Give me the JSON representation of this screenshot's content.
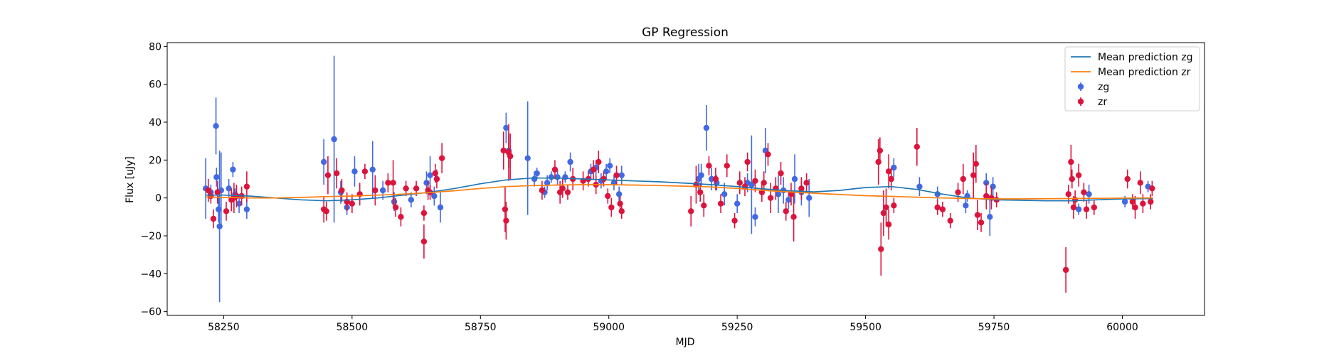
{
  "chart_data": {
    "type": "scatter",
    "title": "GP Regression",
    "xlabel": "MJD",
    "ylabel": "Flux [uJy]",
    "xlim": [
      58140,
      60160
    ],
    "ylim": [
      -62,
      82
    ],
    "xticks": [
      58250,
      58500,
      58750,
      59000,
      59250,
      59500,
      59750,
      60000
    ],
    "yticks": [
      -60,
      -40,
      -20,
      0,
      20,
      40,
      60,
      80
    ],
    "grid": false,
    "legend_position": "top-right",
    "series": [
      {
        "name": "Mean prediction zg",
        "kind": "line",
        "color": "#1f77b4",
        "x": [
          58215,
          58250,
          58300,
          58350,
          58400,
          58450,
          58500,
          58550,
          58600,
          58650,
          58700,
          58750,
          58800,
          58850,
          58900,
          58950,
          59000,
          59050,
          59100,
          59150,
          59200,
          59250,
          59300,
          59350,
          59400,
          59450,
          59500,
          59550,
          59600,
          59650,
          59700,
          59750,
          59800,
          59850,
          59900,
          59950,
          60000,
          60060
        ],
        "y": [
          1.5,
          1.5,
          1.0,
          0.0,
          -1.0,
          -1.5,
          -1.0,
          0.0,
          1.5,
          3.0,
          5.0,
          7.5,
          9.5,
          10.5,
          10.5,
          10.0,
          9.5,
          9.0,
          8.5,
          7.8,
          7.0,
          6.0,
          4.8,
          3.8,
          3.2,
          4.0,
          5.5,
          6.0,
          4.5,
          2.0,
          0.0,
          -1.0,
          -1.2,
          -1.5,
          -1.5,
          -1.0,
          -0.5,
          -0.3
        ]
      },
      {
        "name": "Mean prediction zr",
        "kind": "line",
        "color": "#ff7f0e",
        "x": [
          58215,
          58250,
          58300,
          58350,
          58400,
          58450,
          58500,
          58550,
          58600,
          58650,
          58700,
          58750,
          58800,
          58850,
          58900,
          58950,
          59000,
          59050,
          59100,
          59150,
          59200,
          59250,
          59300,
          59350,
          59400,
          59450,
          59500,
          59550,
          59600,
          59650,
          59700,
          59750,
          59800,
          59850,
          59900,
          59950,
          60000,
          60060
        ],
        "y": [
          0.5,
          0.3,
          0.0,
          0.0,
          0.3,
          0.7,
          1.0,
          1.5,
          2.0,
          2.8,
          3.8,
          5.0,
          6.0,
          6.5,
          6.8,
          7.0,
          7.0,
          6.8,
          6.5,
          6.2,
          5.8,
          5.0,
          4.0,
          3.2,
          2.5,
          1.8,
          1.2,
          0.8,
          0.4,
          0.0,
          -0.3,
          -0.5,
          -0.5,
          -0.4,
          -0.3,
          -0.2,
          -0.1,
          0.0
        ]
      },
      {
        "name": "zg",
        "kind": "errorbar",
        "color": "#4169e1",
        "points": [
          [
            58215,
            5,
            16
          ],
          [
            58225,
            3,
            4
          ],
          [
            58235,
            38,
            15
          ],
          [
            58236,
            11,
            5
          ],
          [
            58240,
            -6,
            7
          ],
          [
            58242,
            -15,
            40
          ],
          [
            58245,
            4,
            20
          ],
          [
            58260,
            5,
            5
          ],
          [
            58268,
            15,
            4
          ],
          [
            58272,
            2,
            3
          ],
          [
            58280,
            -3,
            5
          ],
          [
            58295,
            -6,
            5
          ],
          [
            58445,
            19,
            12
          ],
          [
            58465,
            31,
            44
          ],
          [
            58478,
            3,
            6
          ],
          [
            58490,
            -5,
            4
          ],
          [
            58505,
            14,
            8
          ],
          [
            58540,
            15,
            15
          ],
          [
            58560,
            4,
            5
          ],
          [
            58582,
            -2,
            5
          ],
          [
            58615,
            -1,
            4
          ],
          [
            58645,
            8,
            6
          ],
          [
            58652,
            12,
            10
          ],
          [
            58660,
            1,
            5
          ],
          [
            58672,
            -5,
            8
          ],
          [
            58800,
            37,
            8
          ],
          [
            58805,
            25,
            9
          ],
          [
            58842,
            21,
            30
          ],
          [
            58855,
            10,
            4
          ],
          [
            58860,
            13,
            3
          ],
          [
            58875,
            3,
            3
          ],
          [
            58880,
            8,
            4
          ],
          [
            58888,
            11,
            3
          ],
          [
            58900,
            11,
            4
          ],
          [
            58915,
            11,
            3
          ],
          [
            58925,
            19,
            5
          ],
          [
            58965,
            14,
            4
          ],
          [
            58975,
            16,
            4
          ],
          [
            58985,
            9,
            4
          ],
          [
            58995,
            14,
            4
          ],
          [
            59002,
            17,
            4
          ],
          [
            59010,
            8,
            4
          ],
          [
            59020,
            2,
            4
          ],
          [
            59025,
            12,
            5
          ],
          [
            59175,
            10,
            8
          ],
          [
            59180,
            12,
            6
          ],
          [
            59190,
            37,
            12
          ],
          [
            59200,
            10,
            6
          ],
          [
            59210,
            8,
            4
          ],
          [
            59225,
            2,
            6
          ],
          [
            59250,
            -3,
            5
          ],
          [
            59270,
            8,
            5
          ],
          [
            59278,
            7,
            26
          ],
          [
            59285,
            -10,
            5
          ],
          [
            59305,
            25,
            12
          ],
          [
            59330,
            2,
            10
          ],
          [
            59340,
            4,
            7
          ],
          [
            59350,
            -1,
            5
          ],
          [
            59362,
            10,
            13
          ],
          [
            59375,
            3,
            7
          ],
          [
            59390,
            0,
            10
          ],
          [
            59555,
            16,
            5
          ],
          [
            59605,
            6,
            5
          ],
          [
            59640,
            2,
            4
          ],
          [
            59695,
            -4,
            4
          ],
          [
            59698,
            1,
            3
          ],
          [
            59735,
            8,
            5
          ],
          [
            59742,
            -10,
            10
          ],
          [
            59748,
            6,
            5
          ],
          [
            59935,
            2,
            5
          ],
          [
            59915,
            -6,
            3
          ],
          [
            60005,
            -2,
            3
          ],
          [
            60050,
            6,
            3
          ]
        ]
      },
      {
        "name": "zr",
        "kind": "errorbar",
        "color": "#dc143c",
        "points": [
          [
            58220,
            4,
            6
          ],
          [
            58225,
            1,
            4
          ],
          [
            58230,
            -11,
            5
          ],
          [
            58238,
            3,
            6
          ],
          [
            58255,
            -7,
            5
          ],
          [
            58265,
            -1,
            6
          ],
          [
            58270,
            0,
            8
          ],
          [
            58275,
            1,
            6
          ],
          [
            58285,
            1,
            5
          ],
          [
            58295,
            6,
            8
          ],
          [
            58445,
            -6,
            7
          ],
          [
            58450,
            -7,
            5
          ],
          [
            58453,
            12,
            10
          ],
          [
            58470,
            13,
            8
          ],
          [
            58480,
            4,
            6
          ],
          [
            58490,
            -2,
            5
          ],
          [
            58500,
            -3,
            5
          ],
          [
            58515,
            2,
            6
          ],
          [
            58525,
            14,
            4
          ],
          [
            58545,
            4,
            8
          ],
          [
            58570,
            8,
            5
          ],
          [
            58580,
            8,
            12
          ],
          [
            58585,
            -5,
            5
          ],
          [
            58595,
            -10,
            5
          ],
          [
            58605,
            5,
            4
          ],
          [
            58625,
            5,
            4
          ],
          [
            58640,
            -23,
            9
          ],
          [
            58640,
            -8,
            4
          ],
          [
            58648,
            4,
            5
          ],
          [
            58652,
            3,
            4
          ],
          [
            58662,
            13,
            5
          ],
          [
            58665,
            10,
            5
          ],
          [
            58675,
            21,
            8
          ],
          [
            58795,
            25,
            10
          ],
          [
            58798,
            -6,
            12
          ],
          [
            58800,
            -12,
            10
          ],
          [
            58805,
            24,
            15
          ],
          [
            58808,
            22,
            12
          ],
          [
            58870,
            4,
            5
          ],
          [
            58895,
            15,
            5
          ],
          [
            58905,
            3,
            6
          ],
          [
            58910,
            5,
            5
          ],
          [
            58920,
            3,
            4
          ],
          [
            58930,
            10,
            6
          ],
          [
            58950,
            9,
            5
          ],
          [
            58960,
            10,
            4
          ],
          [
            58970,
            15,
            5
          ],
          [
            58975,
            7,
            5
          ],
          [
            58980,
            19,
            6
          ],
          [
            58990,
            10,
            4
          ],
          [
            58998,
            1,
            4
          ],
          [
            59005,
            -5,
            5
          ],
          [
            59015,
            12,
            5
          ],
          [
            59022,
            -3,
            4
          ],
          [
            59025,
            -7,
            4
          ],
          [
            59160,
            -7,
            8
          ],
          [
            59170,
            7,
            10
          ],
          [
            59178,
            3,
            5
          ],
          [
            59185,
            -4,
            6
          ],
          [
            59195,
            17,
            5
          ],
          [
            59208,
            10,
            6
          ],
          [
            59218,
            -3,
            5
          ],
          [
            59230,
            17,
            6
          ],
          [
            59245,
            -12,
            4
          ],
          [
            59255,
            8,
            6
          ],
          [
            59265,
            6,
            5
          ],
          [
            59270,
            19,
            5
          ],
          [
            59285,
            9,
            6
          ],
          [
            59298,
            3,
            5
          ],
          [
            59302,
            8,
            6
          ],
          [
            59310,
            23,
            6
          ],
          [
            59315,
            0,
            8
          ],
          [
            59325,
            5,
            6
          ],
          [
            59335,
            13,
            6
          ],
          [
            59345,
            -7,
            5
          ],
          [
            59355,
            2,
            6
          ],
          [
            59360,
            -10,
            13
          ],
          [
            59375,
            5,
            6
          ],
          [
            59385,
            8,
            5
          ],
          [
            59525,
            19,
            12
          ],
          [
            59528,
            25,
            7
          ],
          [
            59530,
            -27,
            14
          ],
          [
            59535,
            -8,
            12
          ],
          [
            59540,
            -5,
            10
          ],
          [
            59545,
            14,
            9
          ],
          [
            59545,
            -14,
            8
          ],
          [
            59550,
            10,
            6
          ],
          [
            59555,
            -4,
            4
          ],
          [
            59600,
            27,
            10
          ],
          [
            59640,
            -5,
            4
          ],
          [
            59650,
            -6,
            4
          ],
          [
            59665,
            -12,
            4
          ],
          [
            59680,
            3,
            5
          ],
          [
            59690,
            10,
            8
          ],
          [
            59710,
            12,
            12
          ],
          [
            59715,
            18,
            10
          ],
          [
            59718,
            -9,
            8
          ],
          [
            59725,
            -13,
            5
          ],
          [
            59735,
            1,
            7
          ],
          [
            59745,
            0,
            6
          ],
          [
            59755,
            -1,
            4
          ],
          [
            59890,
            -38,
            12
          ],
          [
            59895,
            2,
            5
          ],
          [
            59900,
            19,
            9
          ],
          [
            59902,
            10,
            5
          ],
          [
            59905,
            -5,
            6
          ],
          [
            59908,
            -1,
            5
          ],
          [
            59915,
            12,
            6
          ],
          [
            59925,
            3,
            5
          ],
          [
            59930,
            -6,
            5
          ],
          [
            59945,
            -5,
            4
          ],
          [
            60010,
            10,
            5
          ],
          [
            60020,
            -2,
            4
          ],
          [
            60025,
            -5,
            6
          ],
          [
            60035,
            8,
            6
          ],
          [
            60040,
            -3,
            5
          ],
          [
            60055,
            -2,
            4
          ],
          [
            60058,
            5,
            4
          ]
        ]
      }
    ]
  }
}
